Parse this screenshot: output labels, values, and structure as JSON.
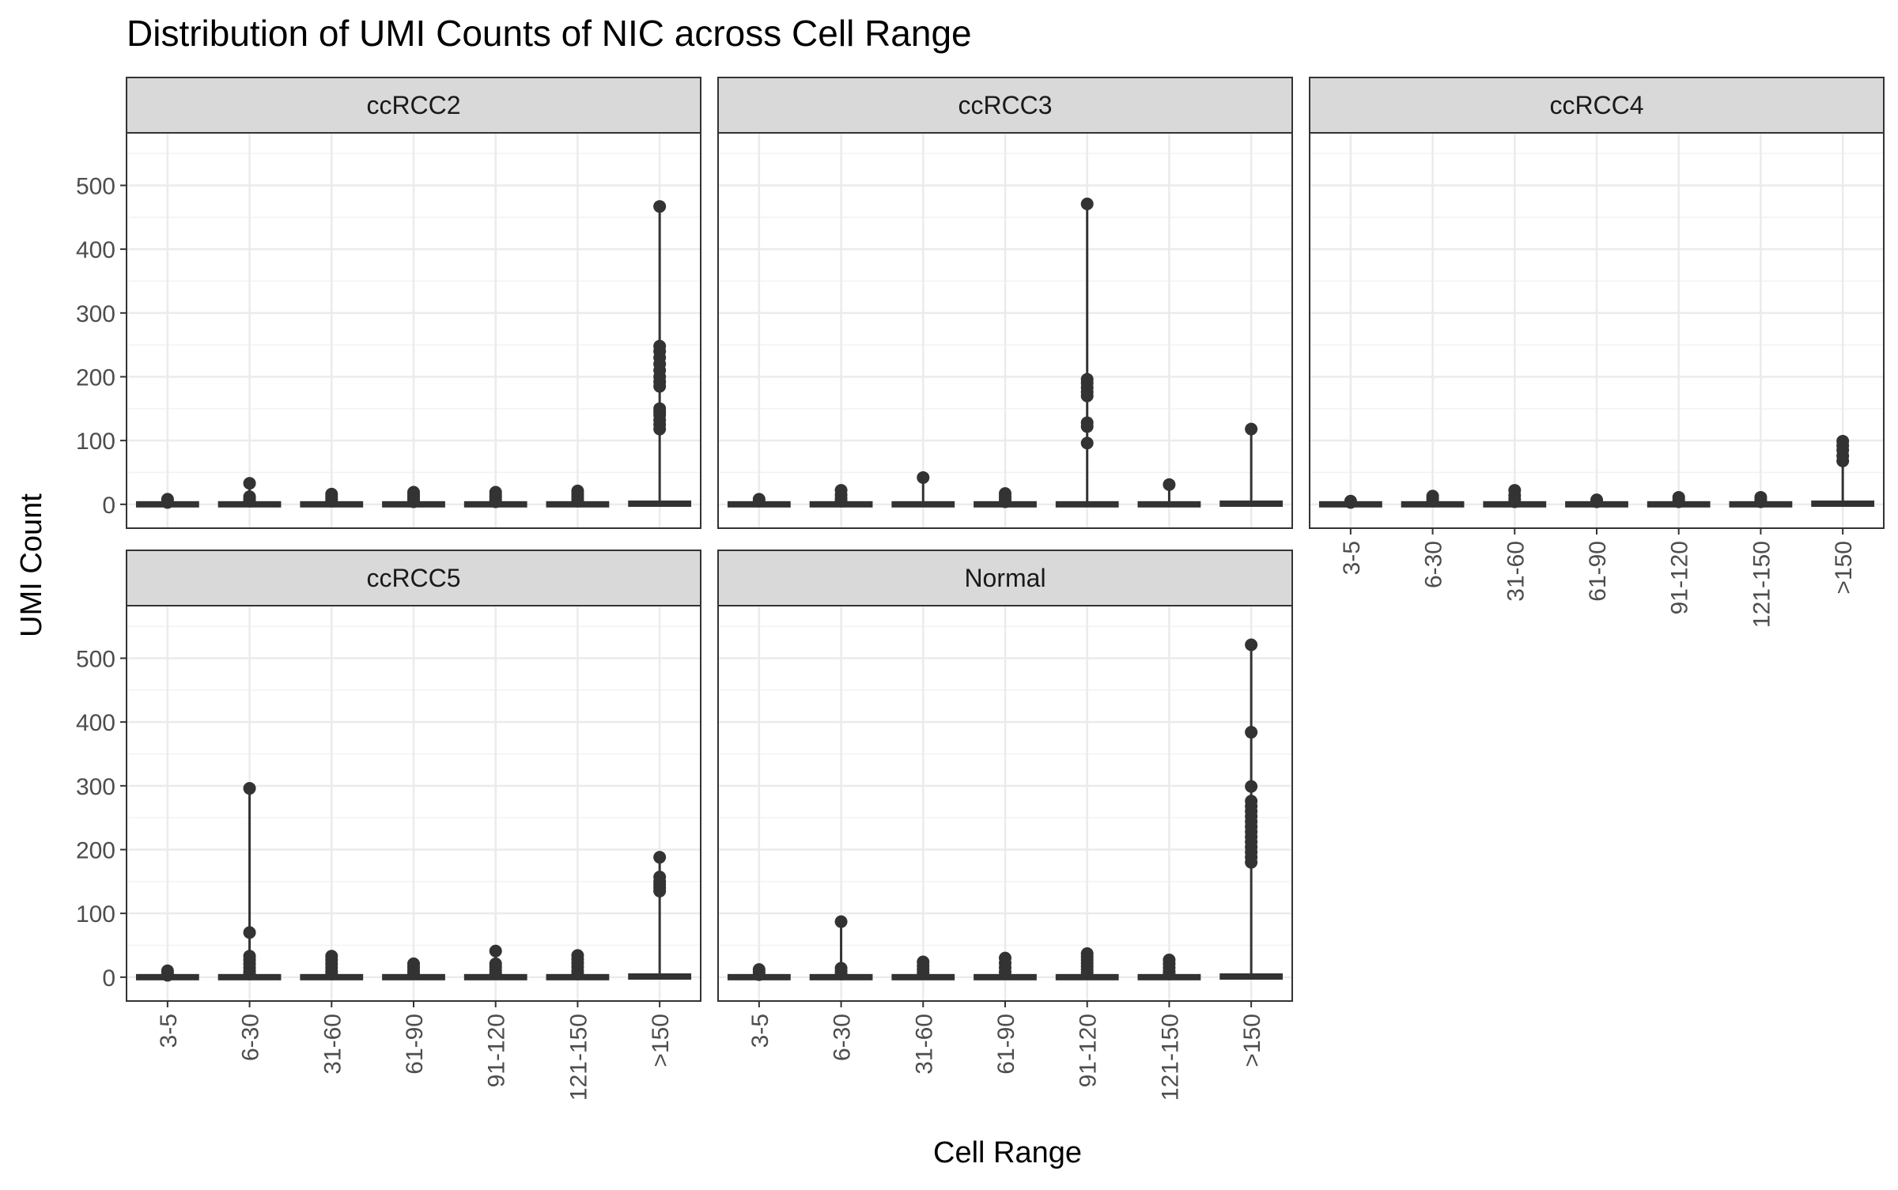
{
  "chart_data": {
    "type": "boxplot",
    "title": "Distribution of UMI Counts of NIC across Cell Range",
    "xlabel": "Cell Range",
    "ylabel": "UMI Count",
    "categories": [
      "3-5",
      "6-30",
      "31-60",
      "61-90",
      "91-120",
      "121-150",
      ">150"
    ],
    "ylim": [
      -25,
      570
    ],
    "yticks": [
      0,
      100,
      200,
      300,
      400,
      500
    ],
    "grid": true,
    "facets": [
      {
        "name": "ccRCC2",
        "boxes": [
          {
            "category": "3-5",
            "median": 0,
            "max": 8,
            "outliers": [
              8,
              5,
              3
            ]
          },
          {
            "category": "6-30",
            "median": 0,
            "max": 33,
            "outliers": [
              33,
              12,
              8,
              5
            ]
          },
          {
            "category": "31-60",
            "median": 0,
            "max": 16,
            "outliers": [
              16,
              12,
              8,
              5
            ]
          },
          {
            "category": "61-90",
            "median": 0,
            "max": 19,
            "outliers": [
              19,
              15,
              11,
              7,
              4
            ]
          },
          {
            "category": "91-120",
            "median": 0,
            "max": 19,
            "outliers": [
              19,
              15,
              11,
              7,
              4
            ]
          },
          {
            "category": "121-150",
            "median": 0,
            "max": 21,
            "outliers": [
              21,
              17,
              13,
              9,
              5
            ]
          },
          {
            "category": ">150",
            "median": 1,
            "max": 467,
            "outliers": [
              467,
              248,
              240,
              230,
              220,
              210,
              200,
              192,
              185,
              150,
              145,
              140,
              132,
              125,
              118
            ]
          }
        ]
      },
      {
        "name": "ccRCC3",
        "boxes": [
          {
            "category": "3-5",
            "median": 0,
            "max": 8,
            "outliers": [
              8,
              5
            ]
          },
          {
            "category": "6-30",
            "median": 0,
            "max": 22,
            "outliers": [
              22,
              15,
              9,
              5
            ]
          },
          {
            "category": "31-60",
            "median": 0,
            "max": 42,
            "outliers": [
              42
            ]
          },
          {
            "category": "61-90",
            "median": 0,
            "max": 17,
            "outliers": [
              17,
              12,
              8,
              4
            ]
          },
          {
            "category": "91-120",
            "median": 0,
            "max": 471,
            "outliers": [
              471,
              196,
              190,
              183,
              176,
              170,
              128,
              122,
              96
            ]
          },
          {
            "category": "121-150",
            "median": 0,
            "max": 31,
            "outliers": [
              31
            ]
          },
          {
            "category": ">150",
            "median": 1,
            "max": 118,
            "outliers": [
              118
            ]
          }
        ]
      },
      {
        "name": "ccRCC4",
        "boxes": [
          {
            "category": "3-5",
            "median": 0,
            "max": 5,
            "outliers": [
              5,
              3
            ]
          },
          {
            "category": "6-30",
            "median": 0,
            "max": 13,
            "outliers": [
              13,
              9,
              5
            ]
          },
          {
            "category": "31-60",
            "median": 0,
            "max": 22,
            "outliers": [
              22,
              14,
              8,
              4
            ]
          },
          {
            "category": "61-90",
            "median": 0,
            "max": 7,
            "outliers": [
              7,
              4
            ]
          },
          {
            "category": "91-120",
            "median": 0,
            "max": 11,
            "outliers": [
              11,
              7,
              4
            ]
          },
          {
            "category": "121-150",
            "median": 0,
            "max": 11,
            "outliers": [
              11,
              7,
              4
            ]
          },
          {
            "category": ">150",
            "median": 1,
            "max": 99,
            "outliers": [
              99,
              92,
              85,
              76,
              68
            ]
          }
        ]
      },
      {
        "name": "ccRCC5",
        "boxes": [
          {
            "category": "3-5",
            "median": 0,
            "max": 10,
            "outliers": [
              10,
              6,
              3
            ]
          },
          {
            "category": "6-30",
            "median": 0,
            "max": 296,
            "outliers": [
              296,
              70,
              33,
              27,
              21,
              15,
              9,
              5
            ]
          },
          {
            "category": "31-60",
            "median": 0,
            "max": 33,
            "outliers": [
              33,
              27,
              21,
              15,
              9,
              5
            ]
          },
          {
            "category": "61-90",
            "median": 0,
            "max": 21,
            "outliers": [
              21,
              16,
              11,
              6
            ]
          },
          {
            "category": "91-120",
            "median": 0,
            "max": 41,
            "outliers": [
              41,
              21,
              16,
              11,
              6
            ]
          },
          {
            "category": "121-150",
            "median": 0,
            "max": 34,
            "outliers": [
              34,
              28,
              22,
              16,
              10,
              5
            ]
          },
          {
            "category": ">150",
            "median": 1,
            "max": 188,
            "outliers": [
              188,
              157,
              150,
              145,
              140,
              135
            ]
          }
        ]
      },
      {
        "name": "Normal",
        "boxes": [
          {
            "category": "3-5",
            "median": 0,
            "max": 12,
            "outliers": [
              12,
              8,
              4
            ]
          },
          {
            "category": "6-30",
            "median": 0,
            "max": 87,
            "outliers": [
              87,
              14,
              9,
              5
            ]
          },
          {
            "category": "31-60",
            "median": 0,
            "max": 24,
            "outliers": [
              24,
              18,
              12,
              7
            ]
          },
          {
            "category": "61-90",
            "median": 0,
            "max": 30,
            "outliers": [
              30,
              22,
              15,
              8
            ]
          },
          {
            "category": "91-120",
            "median": 0,
            "max": 37,
            "outliers": [
              37,
              32,
              27,
              22,
              17,
              12,
              7
            ]
          },
          {
            "category": "121-150",
            "median": 0,
            "max": 27,
            "outliers": [
              27,
              21,
              15,
              9,
              5
            ]
          },
          {
            "category": ">150",
            "median": 1,
            "max": 521,
            "outliers": [
              521,
              384,
              299,
              276,
              268,
              260,
              252,
              244,
              236,
              228,
              220,
              212,
              204,
              196,
              188,
              180
            ]
          }
        ]
      }
    ]
  }
}
